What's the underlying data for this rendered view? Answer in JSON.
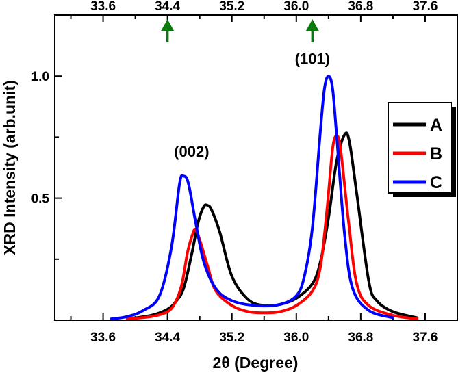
{
  "chart_data": {
    "type": "line",
    "xlabel": "2θ (Degree)",
    "ylabel": "XRD Intensity (arb.unit)",
    "xlim": [
      33.0,
      38.0
    ],
    "ylim": [
      0.0,
      1.25
    ],
    "x_ticks": [
      33.6,
      34.4,
      35.2,
      36.0,
      36.8,
      37.6
    ],
    "x_tick_labels": [
      "33.6",
      "34.4",
      "35.2",
      "36.0",
      "36.8",
      "37.6"
    ],
    "y_ticks": [
      0.5,
      1.0
    ],
    "y_tick_labels": [
      "0.5",
      "1.0"
    ],
    "top_axis_mirrored": true,
    "grid": false,
    "legend_position": "right",
    "annotations": [
      {
        "text": "(002)",
        "x": 34.7,
        "y": 0.67
      },
      {
        "text": "(101)",
        "x": 36.2,
        "y": 1.05
      }
    ],
    "markers": [
      {
        "type": "arrow-down",
        "x": 34.4,
        "color": "#0a7a0a"
      },
      {
        "type": "arrow-down",
        "x": 36.2,
        "color": "#0a7a0a"
      }
    ],
    "series": [
      {
        "name": "A",
        "color": "#000000",
        "points": [
          [
            33.9,
            0.005
          ],
          [
            34.2,
            0.02
          ],
          [
            34.4,
            0.045
          ],
          [
            34.5,
            0.075
          ],
          [
            34.6,
            0.13
          ],
          [
            34.7,
            0.27
          ],
          [
            34.78,
            0.4
          ],
          [
            34.85,
            0.465
          ],
          [
            34.9,
            0.47
          ],
          [
            34.95,
            0.45
          ],
          [
            35.05,
            0.36
          ],
          [
            35.2,
            0.18
          ],
          [
            35.4,
            0.085
          ],
          [
            35.6,
            0.06
          ],
          [
            35.8,
            0.065
          ],
          [
            36.0,
            0.09
          ],
          [
            36.2,
            0.15
          ],
          [
            36.3,
            0.24
          ],
          [
            36.4,
            0.42
          ],
          [
            36.5,
            0.65
          ],
          [
            36.6,
            0.76
          ],
          [
            36.66,
            0.73
          ],
          [
            36.75,
            0.52
          ],
          [
            36.9,
            0.16
          ],
          [
            37.0,
            0.08
          ],
          [
            37.2,
            0.035
          ],
          [
            37.5,
            0.01
          ]
        ]
      },
      {
        "name": "B",
        "color": "#ff0000",
        "points": [
          [
            33.9,
            0.005
          ],
          [
            34.2,
            0.015
          ],
          [
            34.4,
            0.035
          ],
          [
            34.5,
            0.075
          ],
          [
            34.58,
            0.15
          ],
          [
            34.65,
            0.28
          ],
          [
            34.72,
            0.36
          ],
          [
            34.75,
            0.37
          ],
          [
            34.8,
            0.33
          ],
          [
            34.9,
            0.22
          ],
          [
            35.0,
            0.12
          ],
          [
            35.2,
            0.06
          ],
          [
            35.4,
            0.035
          ],
          [
            35.6,
            0.03
          ],
          [
            35.8,
            0.035
          ],
          [
            36.0,
            0.06
          ],
          [
            36.2,
            0.12
          ],
          [
            36.3,
            0.22
          ],
          [
            36.38,
            0.45
          ],
          [
            36.45,
            0.7
          ],
          [
            36.5,
            0.755
          ],
          [
            36.55,
            0.7
          ],
          [
            36.65,
            0.4
          ],
          [
            36.75,
            0.15
          ],
          [
            36.9,
            0.06
          ],
          [
            37.2,
            0.02
          ],
          [
            37.5,
            0.005
          ]
        ]
      },
      {
        "name": "C",
        "color": "#0000ff",
        "points": [
          [
            33.7,
            0.005
          ],
          [
            33.9,
            0.015
          ],
          [
            34.1,
            0.04
          ],
          [
            34.3,
            0.1
          ],
          [
            34.45,
            0.3
          ],
          [
            34.55,
            0.56
          ],
          [
            34.6,
            0.59
          ],
          [
            34.66,
            0.56
          ],
          [
            34.75,
            0.4
          ],
          [
            34.85,
            0.24
          ],
          [
            35.0,
            0.13
          ],
          [
            35.2,
            0.08
          ],
          [
            35.5,
            0.06
          ],
          [
            35.8,
            0.065
          ],
          [
            36.0,
            0.1
          ],
          [
            36.1,
            0.18
          ],
          [
            36.2,
            0.38
          ],
          [
            36.3,
            0.78
          ],
          [
            36.35,
            0.95
          ],
          [
            36.4,
            1.0
          ],
          [
            36.45,
            0.95
          ],
          [
            36.5,
            0.76
          ],
          [
            36.6,
            0.35
          ],
          [
            36.7,
            0.13
          ],
          [
            36.9,
            0.04
          ],
          [
            37.2,
            0.01
          ]
        ]
      }
    ]
  }
}
